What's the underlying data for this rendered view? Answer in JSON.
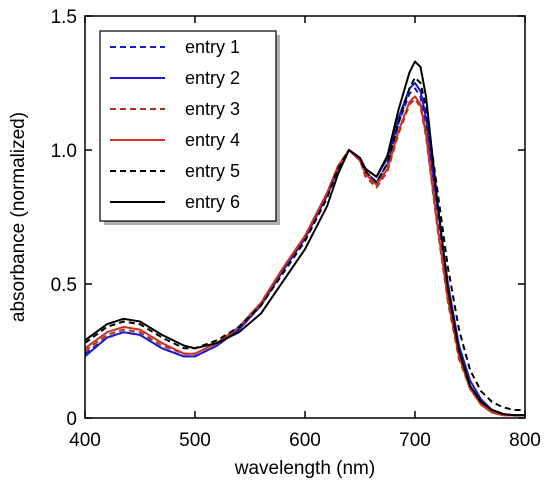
{
  "chart_data": {
    "type": "line",
    "title": "",
    "xlabel": "wavelength (nm)",
    "ylabel": "absorbance (normalized)",
    "xlim": [
      400,
      800
    ],
    "ylim": [
      0,
      1.5
    ],
    "xticks": [
      400,
      500,
      600,
      700,
      800
    ],
    "xtick_labels": [
      "400",
      "500",
      "600",
      "700",
      "800"
    ],
    "yticks": [
      0,
      0.5,
      1.0,
      1.5
    ],
    "ytick_labels": [
      "0",
      "0.5",
      "1.0",
      "1.5"
    ],
    "grid": false,
    "legend_position": "top-left",
    "series": [
      {
        "name": "entry 1",
        "color": "#1a1ac8",
        "dash": "dashed",
        "x": [
          400,
          420,
          435,
          450,
          470,
          490,
          500,
          520,
          540,
          560,
          580,
          600,
          620,
          630,
          640,
          650,
          655,
          665,
          675,
          685,
          695,
          700,
          705,
          710,
          720,
          730,
          740,
          750,
          760,
          770,
          780,
          790,
          800
        ],
        "y": [
          0.24,
          0.3,
          0.32,
          0.31,
          0.26,
          0.23,
          0.23,
          0.27,
          0.33,
          0.42,
          0.55,
          0.67,
          0.83,
          0.93,
          1.0,
          0.97,
          0.92,
          0.88,
          0.95,
          1.1,
          1.21,
          1.23,
          1.2,
          1.08,
          0.75,
          0.45,
          0.24,
          0.12,
          0.06,
          0.03,
          0.015,
          0.01,
          0.01
        ]
      },
      {
        "name": "entry 2",
        "color": "#1a1ac8",
        "dash": "solid",
        "x": [
          400,
          420,
          435,
          450,
          470,
          490,
          500,
          520,
          540,
          560,
          580,
          600,
          620,
          630,
          640,
          650,
          655,
          665,
          675,
          685,
          695,
          700,
          705,
          710,
          720,
          730,
          740,
          750,
          760,
          770,
          780,
          790,
          800
        ],
        "y": [
          0.23,
          0.3,
          0.32,
          0.31,
          0.26,
          0.23,
          0.23,
          0.27,
          0.33,
          0.42,
          0.55,
          0.67,
          0.83,
          0.93,
          1.0,
          0.97,
          0.93,
          0.9,
          0.97,
          1.12,
          1.23,
          1.25,
          1.22,
          1.12,
          0.8,
          0.5,
          0.27,
          0.14,
          0.07,
          0.03,
          0.015,
          0.01,
          0.01
        ]
      },
      {
        "name": "entry 3",
        "color": "#b03020",
        "dash": "dashed",
        "x": [
          400,
          420,
          435,
          450,
          470,
          490,
          500,
          520,
          540,
          560,
          580,
          600,
          620,
          630,
          640,
          650,
          655,
          665,
          675,
          685,
          695,
          700,
          705,
          710,
          720,
          730,
          740,
          750,
          760,
          770,
          780,
          790,
          800
        ],
        "y": [
          0.25,
          0.31,
          0.33,
          0.32,
          0.27,
          0.24,
          0.24,
          0.28,
          0.34,
          0.43,
          0.56,
          0.68,
          0.84,
          0.94,
          1.0,
          0.96,
          0.9,
          0.86,
          0.92,
          1.06,
          1.17,
          1.19,
          1.16,
          1.05,
          0.72,
          0.43,
          0.22,
          0.11,
          0.05,
          0.02,
          0.01,
          0.01,
          0.01
        ]
      },
      {
        "name": "entry 4",
        "color": "#cc3322",
        "dash": "solid",
        "x": [
          400,
          420,
          435,
          450,
          470,
          490,
          500,
          520,
          540,
          560,
          580,
          600,
          620,
          630,
          640,
          650,
          655,
          665,
          675,
          685,
          695,
          700,
          705,
          710,
          720,
          730,
          740,
          750,
          760,
          770,
          780,
          790,
          800
        ],
        "y": [
          0.26,
          0.32,
          0.34,
          0.33,
          0.28,
          0.24,
          0.24,
          0.28,
          0.34,
          0.43,
          0.56,
          0.68,
          0.84,
          0.94,
          1.0,
          0.96,
          0.91,
          0.87,
          0.93,
          1.07,
          1.18,
          1.2,
          1.17,
          1.06,
          0.73,
          0.44,
          0.23,
          0.11,
          0.05,
          0.02,
          0.01,
          0.01,
          0.01
        ]
      },
      {
        "name": "entry 5",
        "color": "#000000",
        "dash": "dashed",
        "x": [
          400,
          420,
          435,
          450,
          470,
          490,
          500,
          520,
          540,
          560,
          580,
          600,
          620,
          630,
          640,
          650,
          655,
          665,
          675,
          685,
          695,
          700,
          705,
          710,
          720,
          730,
          740,
          750,
          760,
          770,
          780,
          790,
          800
        ],
        "y": [
          0.28,
          0.34,
          0.36,
          0.35,
          0.3,
          0.26,
          0.26,
          0.29,
          0.34,
          0.42,
          0.54,
          0.66,
          0.82,
          0.93,
          1.0,
          0.97,
          0.92,
          0.88,
          0.95,
          1.1,
          1.23,
          1.27,
          1.25,
          1.16,
          0.86,
          0.56,
          0.33,
          0.18,
          0.1,
          0.06,
          0.04,
          0.03,
          0.03
        ]
      },
      {
        "name": "entry 6",
        "color": "#000000",
        "dash": "solid",
        "x": [
          400,
          420,
          435,
          450,
          470,
          490,
          500,
          520,
          540,
          560,
          580,
          600,
          620,
          630,
          640,
          650,
          655,
          665,
          675,
          685,
          695,
          700,
          705,
          710,
          720,
          730,
          740,
          750,
          760,
          770,
          780,
          790,
          800
        ],
        "y": [
          0.29,
          0.35,
          0.37,
          0.36,
          0.31,
          0.27,
          0.26,
          0.28,
          0.32,
          0.39,
          0.51,
          0.63,
          0.79,
          0.91,
          1.0,
          0.97,
          0.93,
          0.9,
          0.98,
          1.15,
          1.29,
          1.33,
          1.31,
          1.2,
          0.82,
          0.48,
          0.25,
          0.12,
          0.06,
          0.03,
          0.015,
          0.01,
          0.01
        ]
      }
    ]
  }
}
